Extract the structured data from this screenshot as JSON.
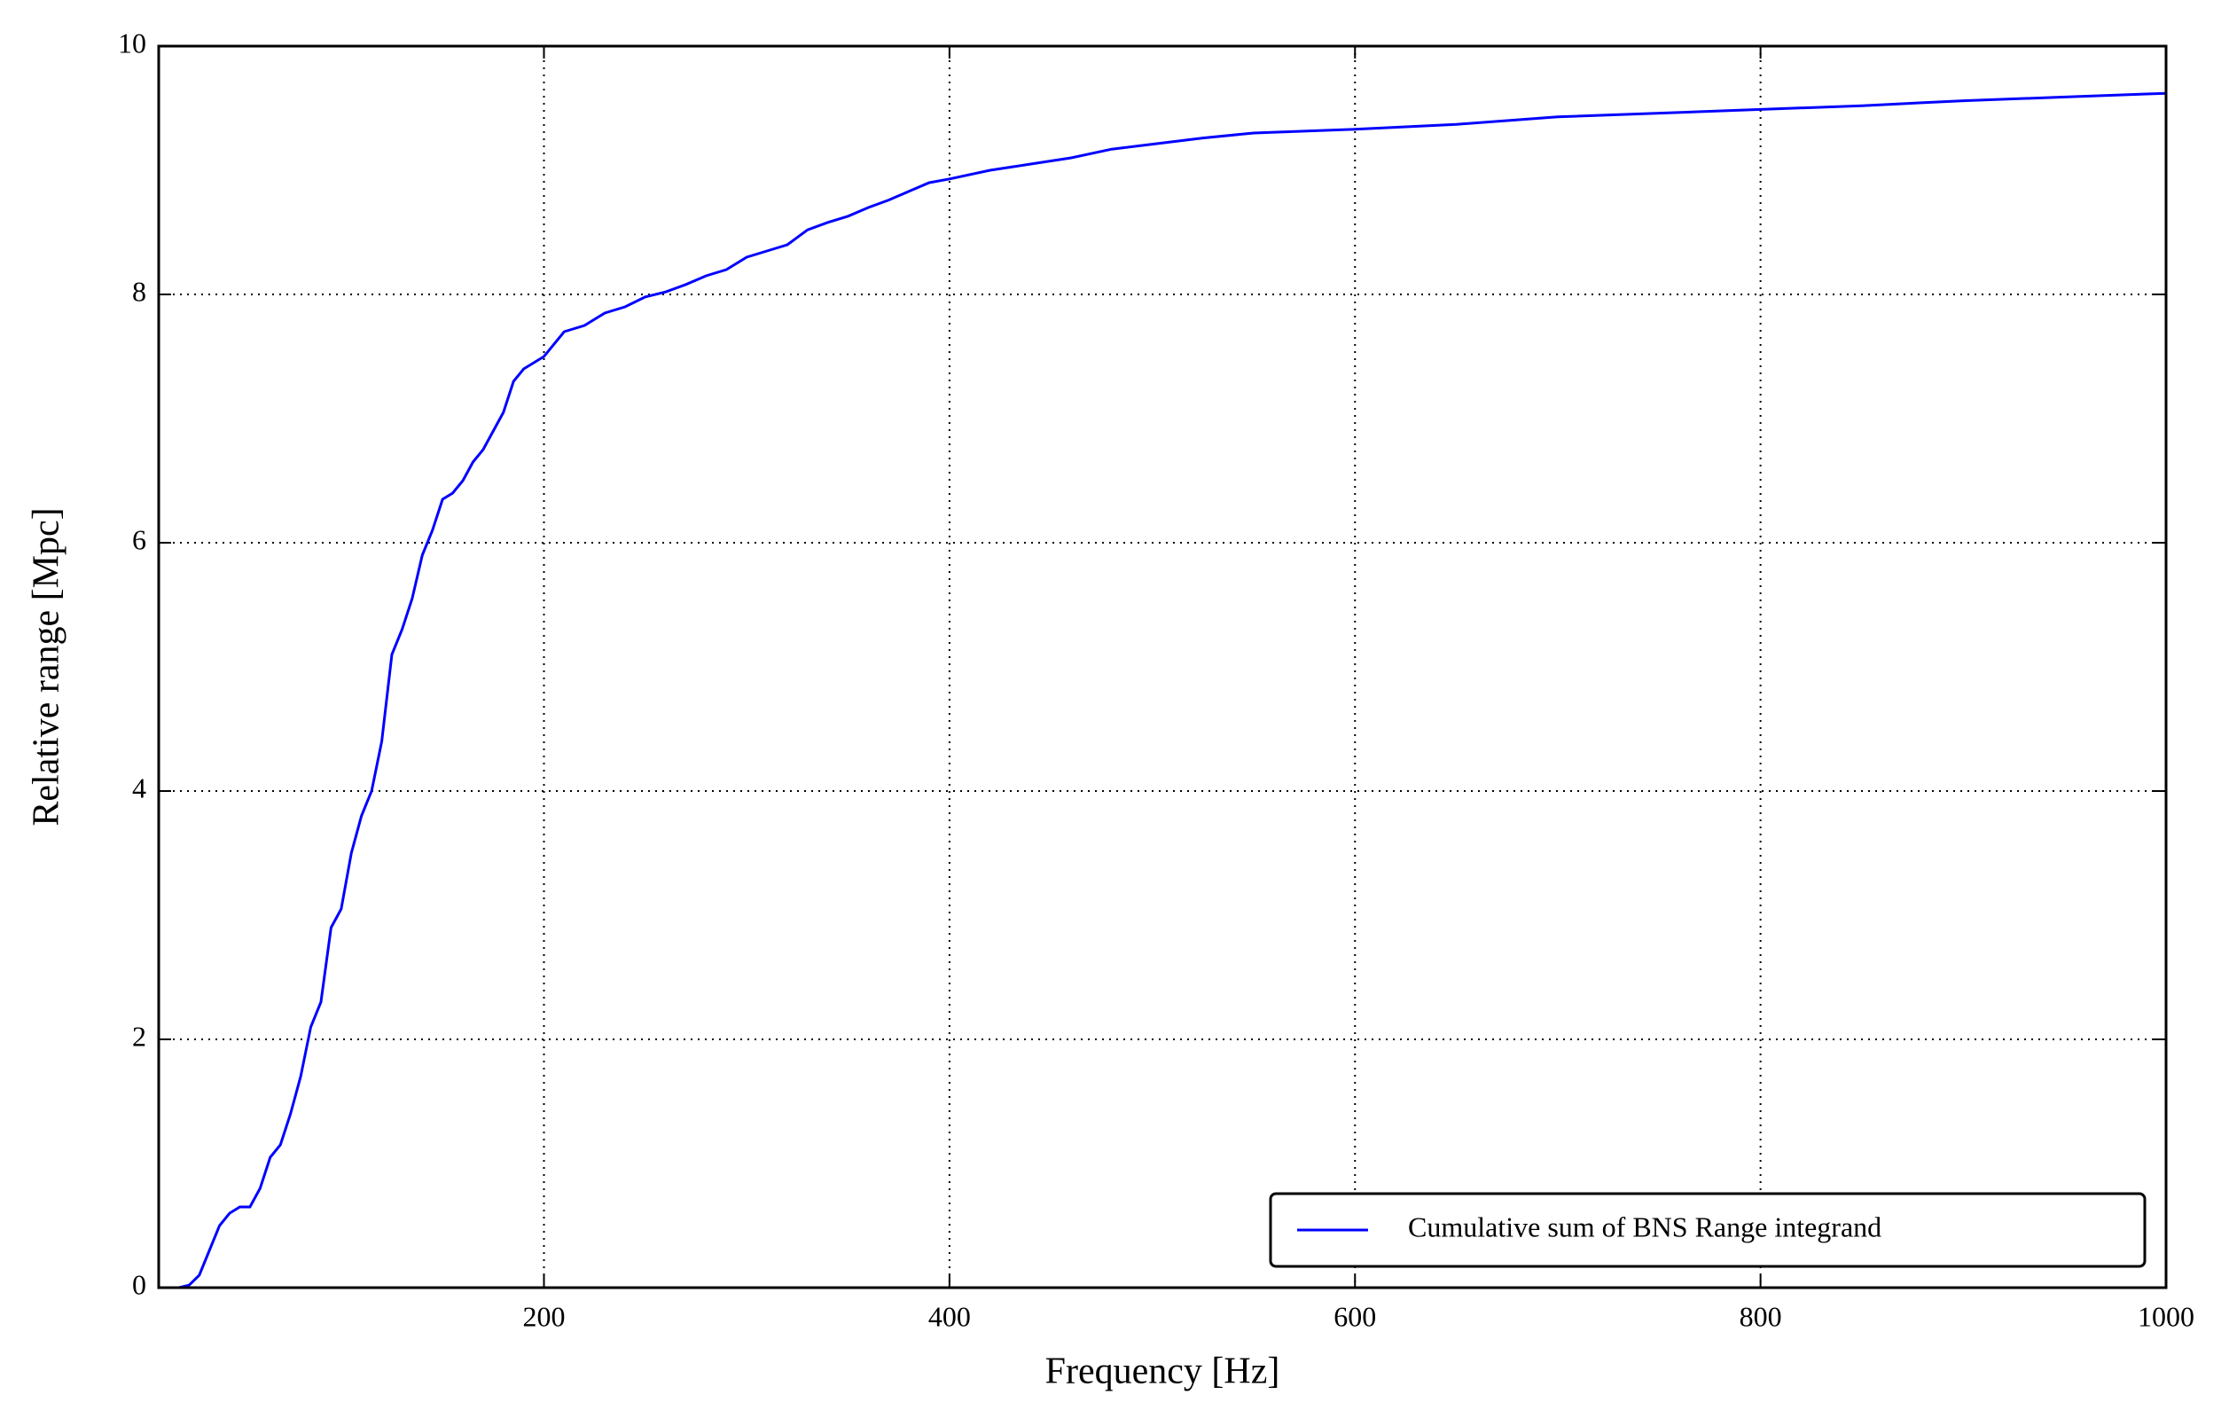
{
  "chart_data": {
    "type": "line",
    "xlabel": "Frequency [Hz]",
    "ylabel": "Relative range [Mpc]",
    "xlim": [
      10,
      1000
    ],
    "xticks": [
      200,
      400,
      600,
      800,
      1000
    ],
    "ylim": [
      0,
      10
    ],
    "yticks": [
      0,
      2,
      4,
      6,
      8,
      10
    ],
    "grid": true,
    "legend": "lower right",
    "x": [
      10,
      20,
      25,
      30,
      35,
      40,
      45,
      50,
      55,
      60,
      65,
      70,
      75,
      80,
      85,
      90,
      95,
      100,
      105,
      110,
      115,
      120,
      125,
      130,
      135,
      140,
      145,
      150,
      155,
      160,
      165,
      170,
      175,
      180,
      185,
      190,
      200,
      210,
      220,
      230,
      240,
      250,
      260,
      270,
      280,
      290,
      300,
      310,
      320,
      330,
      340,
      350,
      360,
      370,
      380,
      390,
      400,
      420,
      440,
      460,
      480,
      500,
      525,
      550,
      600,
      650,
      700,
      750,
      800,
      850,
      900,
      950,
      1000
    ],
    "series": [
      {
        "name": "Cumulative sum of BNS Range integrand",
        "color": "#0000ff",
        "values": [
          0,
          0,
          0.02,
          0.1,
          0.3,
          0.5,
          0.6,
          0.65,
          0.65,
          0.8,
          1.05,
          1.15,
          1.4,
          1.7,
          2.1,
          2.3,
          2.9,
          3.05,
          3.5,
          3.8,
          4.0,
          4.4,
          5.1,
          5.3,
          5.55,
          5.9,
          6.1,
          6.35,
          6.4,
          6.5,
          6.65,
          6.75,
          6.9,
          7.05,
          7.3,
          7.4,
          7.5,
          7.7,
          7.75,
          7.85,
          7.9,
          7.98,
          8.02,
          8.08,
          8.15,
          8.2,
          8.3,
          8.35,
          8.4,
          8.52,
          8.58,
          8.63,
          8.7,
          8.76,
          8.83,
          8.9,
          8.93,
          9.0,
          9.05,
          9.1,
          9.17,
          9.21,
          9.26,
          9.3,
          9.33,
          9.37,
          9.43,
          9.46,
          9.49,
          9.52,
          9.56,
          9.59,
          9.62
        ]
      }
    ]
  }
}
